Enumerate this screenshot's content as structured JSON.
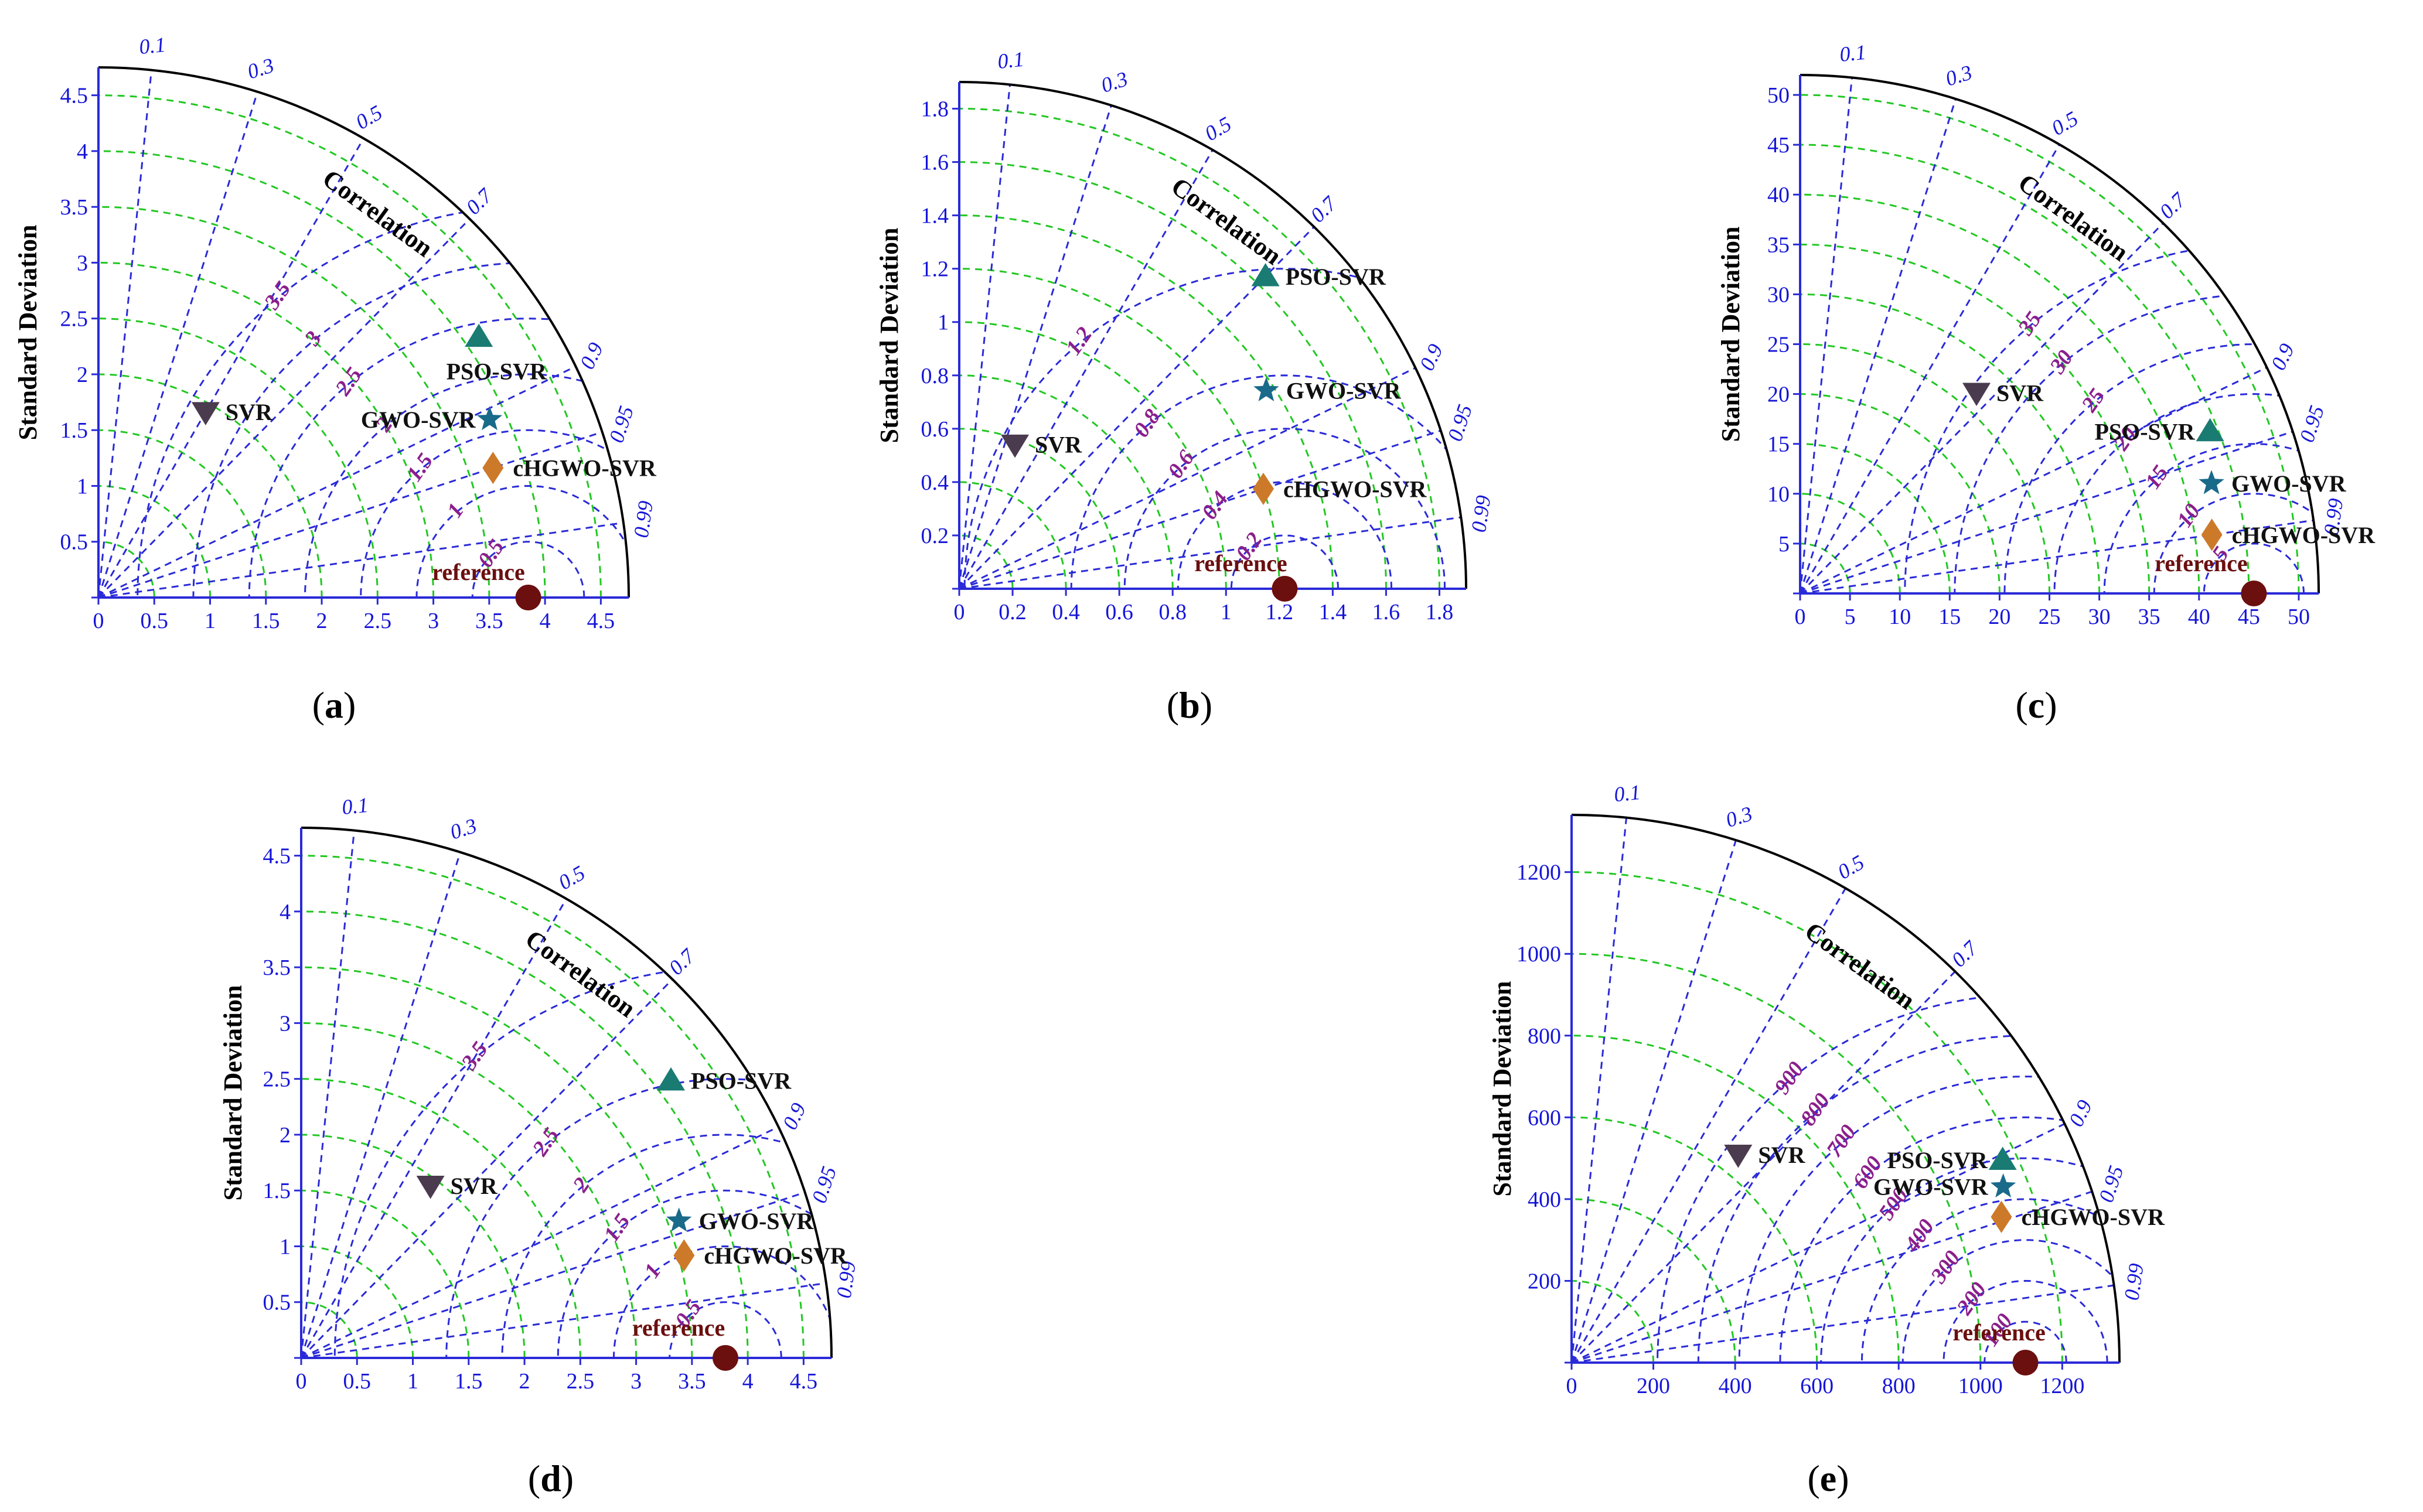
{
  "chart_data": [
    {
      "type": "taylor",
      "panel_label": "a",
      "ylabel": "Standard Deviation",
      "corr_label": "Correlation",
      "std_max": 4.75,
      "std_ticks": [
        0,
        0.5,
        1,
        1.5,
        2,
        2.5,
        3,
        3.5,
        4,
        4.5
      ],
      "x_tick_labels": [
        "0",
        "0.5",
        "1",
        "1.5",
        "2",
        "2.5",
        "3",
        "3.5",
        "4",
        "4.5"
      ],
      "y_tick_labels": [
        "",
        "0.5",
        "1",
        "1.5",
        "2",
        "2.5",
        "3",
        "3.5",
        "4",
        "4.5"
      ],
      "corr_ticks": [
        0.1,
        0.3,
        0.5,
        0.7,
        0.9,
        0.95,
        0.99
      ],
      "corr_tick_labels": [
        "0.1",
        "0.3",
        "0.5",
        "0.7",
        "0.9",
        "0.95",
        "0.99"
      ],
      "reference": {
        "label": "reference",
        "std": 3.85
      },
      "rms_ticks": [
        0.5,
        1,
        1.5,
        2,
        2.5,
        3,
        3.5
      ],
      "rms_tick_labels": [
        "0.5",
        "1",
        "1.5",
        "2",
        "2.5",
        "3",
        "3.5"
      ],
      "series": [
        {
          "name": "SVR",
          "marker": "triangle-down",
          "color": "#4a3b4f",
          "std": 1.92,
          "corr": 0.5
        },
        {
          "name": "PSO-SVR",
          "marker": "triangle-up",
          "color": "#1a7b73",
          "std": 4.13,
          "corr": 0.825
        },
        {
          "name": "GWO-SVR",
          "marker": "star",
          "color": "#1a6a8a",
          "std": 3.85,
          "corr": 0.91
        },
        {
          "name": "cHGWO-SVR",
          "marker": "diamond",
          "color": "#cc7a2a",
          "std": 3.72,
          "corr": 0.95
        }
      ]
    },
    {
      "type": "taylor",
      "panel_label": "b",
      "ylabel": "Standard Deviation",
      "corr_label": "Correlation",
      "std_max": 1.9,
      "std_ticks": [
        0,
        0.2,
        0.4,
        0.6,
        0.8,
        1,
        1.2,
        1.4,
        1.6,
        1.8
      ],
      "x_tick_labels": [
        "0",
        "0.2",
        "0.4",
        "0.6",
        "0.8",
        "1",
        "1.2",
        "1.4",
        "1.6",
        "1.8"
      ],
      "y_tick_labels": [
        "",
        "0.2",
        "0.4",
        "0.6",
        "0.8",
        "1",
        "1.2",
        "1.4",
        "1.6",
        "1.8"
      ],
      "corr_ticks": [
        0.1,
        0.3,
        0.5,
        0.7,
        0.9,
        0.95,
        0.99
      ],
      "corr_tick_labels": [
        "0.1",
        "0.3",
        "0.5",
        "0.7",
        "0.9",
        "0.95",
        "0.99"
      ],
      "reference": {
        "label": "reference",
        "std": 1.22
      },
      "rms_ticks": [
        0.2,
        0.4,
        0.6,
        0.8,
        1.2
      ],
      "rms_tick_labels": [
        "0.2",
        "0.4",
        "0.6",
        "0.8",
        "1.2"
      ],
      "series": [
        {
          "name": "SVR",
          "marker": "triangle-down",
          "color": "#4a3b4f",
          "std": 0.58,
          "corr": 0.36
        },
        {
          "name": "PSO-SVR",
          "marker": "triangle-up",
          "color": "#1a7b73",
          "std": 1.64,
          "corr": 0.7
        },
        {
          "name": "GWO-SVR",
          "marker": "star",
          "color": "#1a6a8a",
          "std": 1.37,
          "corr": 0.84
        },
        {
          "name": "cHGWO-SVR",
          "marker": "diamond",
          "color": "#cc7a2a",
          "std": 1.2,
          "corr": 0.95
        }
      ]
    },
    {
      "type": "taylor",
      "panel_label": "c",
      "ylabel": "Standard Deviation",
      "corr_label": "Correlation",
      "std_max": 52,
      "std_ticks": [
        0,
        5,
        10,
        15,
        20,
        25,
        30,
        35,
        40,
        45,
        50
      ],
      "x_tick_labels": [
        "0",
        "5",
        "10",
        "15",
        "20",
        "25",
        "30",
        "35",
        "40",
        "45",
        "50"
      ],
      "y_tick_labels": [
        "",
        "5",
        "10",
        "15",
        "20",
        "25",
        "30",
        "35",
        "40",
        "45",
        "50"
      ],
      "corr_ticks": [
        0.1,
        0.3,
        0.5,
        0.7,
        0.9,
        0.95,
        0.99
      ],
      "corr_tick_labels": [
        "0.1",
        "0.3",
        "0.5",
        "0.7",
        "0.9",
        "0.95",
        "0.99"
      ],
      "reference": {
        "label": "reference",
        "std": 45.5
      },
      "rms_ticks": [
        5,
        10,
        15,
        20,
        25,
        30,
        35
      ],
      "rms_tick_labels": [
        "5",
        "10",
        "15",
        "20",
        "25",
        "30",
        "35"
      ],
      "series": [
        {
          "name": "SVR",
          "marker": "triangle-down",
          "color": "#4a3b4f",
          "std": 26.8,
          "corr": 0.66
        },
        {
          "name": "PSO-SVR",
          "marker": "triangle-up",
          "color": "#1a7b73",
          "std": 44.2,
          "corr": 0.93
        },
        {
          "name": "GWO-SVR",
          "marker": "star",
          "color": "#1a6a8a",
          "std": 42.7,
          "corr": 0.966
        },
        {
          "name": "cHGWO-SVR",
          "marker": "diamond",
          "color": "#cc7a2a",
          "std": 41.7,
          "corr": 0.99
        }
      ]
    },
    {
      "type": "taylor",
      "panel_label": "d",
      "ylabel": "Standard Deviation",
      "corr_label": "Correlation",
      "std_max": 4.75,
      "std_ticks": [
        0,
        0.5,
        1,
        1.5,
        2,
        2.5,
        3,
        3.5,
        4,
        4.5
      ],
      "x_tick_labels": [
        "0",
        "0.5",
        "1",
        "1.5",
        "2",
        "2.5",
        "3",
        "3.5",
        "4",
        "4.5"
      ],
      "y_tick_labels": [
        "",
        "0.5",
        "1",
        "1.5",
        "2",
        "2.5",
        "3",
        "3.5",
        "4",
        "4.5"
      ],
      "corr_ticks": [
        0.1,
        0.3,
        0.5,
        0.7,
        0.9,
        0.95,
        0.99
      ],
      "corr_tick_labels": [
        "0.1",
        "0.3",
        "0.5",
        "0.7",
        "0.9",
        "0.95",
        "0.99"
      ],
      "reference": {
        "label": "reference",
        "std": 3.8
      },
      "rms_ticks": [
        0.5,
        1,
        1.5,
        2,
        2.5,
        3.5
      ],
      "rms_tick_labels": [
        "0.5",
        "1",
        "1.5",
        "2",
        "2.5",
        "3.5"
      ],
      "series": [
        {
          "name": "SVR",
          "marker": "triangle-down",
          "color": "#4a3b4f",
          "std": 1.93,
          "corr": 0.6
        },
        {
          "name": "PSO-SVR",
          "marker": "triangle-up",
          "color": "#1a7b73",
          "std": 4.14,
          "corr": 0.8
        },
        {
          "name": "GWO-SVR",
          "marker": "star",
          "color": "#1a6a8a",
          "std": 3.6,
          "corr": 0.94
        },
        {
          "name": "cHGWO-SVR",
          "marker": "diamond",
          "color": "#cc7a2a",
          "std": 3.55,
          "corr": 0.966
        }
      ]
    },
    {
      "type": "taylor",
      "panel_label": "e",
      "ylabel": "Standard Deviation",
      "corr_label": "Correlation",
      "std_max": 1340,
      "std_ticks": [
        0,
        200,
        400,
        600,
        800,
        1000,
        1200
      ],
      "x_tick_labels": [
        "0",
        "200",
        "400",
        "600",
        "800",
        "1000",
        "1200"
      ],
      "y_tick_labels": [
        "",
        "200",
        "400",
        "600",
        "800",
        "1000",
        "1200"
      ],
      "corr_ticks": [
        0.1,
        0.3,
        0.5,
        0.7,
        0.9,
        0.95,
        0.99
      ],
      "corr_tick_labels": [
        "0.1",
        "0.3",
        "0.5",
        "0.7",
        "0.9",
        "0.95",
        "0.99"
      ],
      "reference": {
        "label": "reference",
        "std": 1110
      },
      "rms_ticks": [
        100,
        200,
        300,
        400,
        500,
        600,
        700,
        800,
        900
      ],
      "rms_tick_labels": [
        "100",
        "200",
        "300",
        "400",
        "500",
        "600",
        "700",
        "800",
        "900"
      ],
      "series": [
        {
          "name": "SVR",
          "marker": "triangle-down",
          "color": "#4a3b4f",
          "std": 652,
          "corr": 0.625
        },
        {
          "name": "PSO-SVR",
          "marker": "triangle-up",
          "color": "#1a7b73",
          "std": 1165,
          "corr": 0.905
        },
        {
          "name": "GWO-SVR",
          "marker": "star",
          "color": "#1a6a8a",
          "std": 1140,
          "corr": 0.926
        },
        {
          "name": "cHGWO-SVR",
          "marker": "diamond",
          "color": "#cc7a2a",
          "std": 1110,
          "corr": 0.947
        }
      ]
    }
  ]
}
